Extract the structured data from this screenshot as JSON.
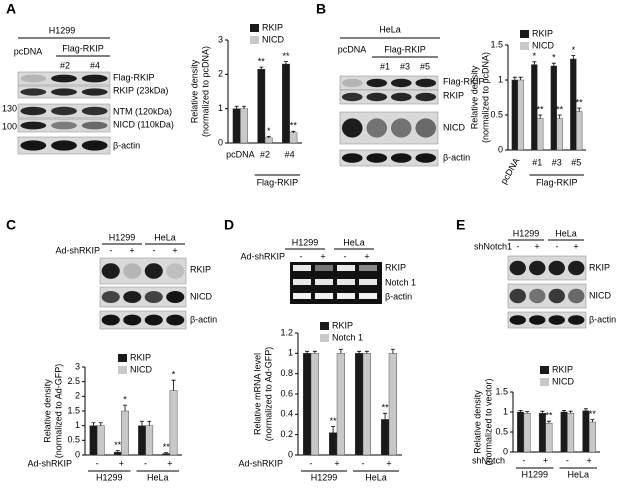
{
  "blots": {
    "A": {
      "letter": "A",
      "cell": "H1299",
      "lanes": [
        "pcDNA",
        "Flag-RKIP",
        "#2",
        "#4"
      ],
      "bands": [
        "Flag-RKIP",
        "RKIP (23kDa)",
        "NTM (120kDa)",
        "NICD (110kDa)",
        "β-actin"
      ],
      "markers": [
        130,
        100
      ]
    },
    "B": {
      "letter": "B",
      "cell": "HeLa",
      "lanes": [
        "pcDNA",
        "Flag-RKIP",
        "#1",
        "#3",
        "#5"
      ],
      "bands": [
        "Flag-RKIP",
        "RKIP",
        "NICD",
        "β-actin"
      ]
    },
    "C": {
      "letter": "C",
      "cells": [
        "H1299",
        "HeLa"
      ],
      "treatment": "Ad-shRKIP",
      "signs": [
        "-",
        "+",
        "-",
        "+"
      ],
      "bands": [
        "RKIP",
        "NICD",
        "β-actin"
      ]
    },
    "D": {
      "letter": "D",
      "cells": [
        "H1299",
        "HeLa"
      ],
      "treatment": "Ad-shRKIP",
      "signs": [
        "-",
        "+",
        "-",
        "+"
      ],
      "bands": [
        "RKIP",
        "Notch 1",
        "β-actin"
      ]
    },
    "E": {
      "letter": "E",
      "cells": [
        "H1299",
        "HeLa"
      ],
      "treatment": "shNotch1",
      "signs": [
        "-",
        "+",
        "-",
        "+"
      ],
      "bands": [
        "RKIP",
        "NICD",
        "β-actin"
      ]
    }
  },
  "chart_data": [
    {
      "type": "bar",
      "ylabel": [
        "Relative density",
        "(normalized to pcDNA)"
      ],
      "categories": [
        "pcDNA",
        "#2",
        "#4"
      ],
      "group_label": "Flag-RKIP",
      "series": [
        {
          "name": "RKIP",
          "color": "#1a1a1a",
          "values": [
            1,
            2.15,
            2.3
          ],
          "errors": [
            0.07,
            0.06,
            0.07
          ],
          "marks": [
            null,
            "**",
            "**"
          ]
        },
        {
          "name": "NICD",
          "color": "#c8c8c8",
          "values": [
            1,
            0.15,
            0.3
          ],
          "errors": [
            0.07,
            0.04,
            0.04
          ],
          "marks": [
            null,
            "*",
            "**"
          ]
        }
      ],
      "ylim": [
        0,
        3
      ],
      "yticks": [
        0,
        1,
        2,
        3
      ]
    },
    {
      "type": "bar",
      "ylabel": [
        "Relative density",
        "(normalized to pcDNA)"
      ],
      "categories": [
        "pcDNA",
        "#1",
        "#3",
        "#5"
      ],
      "group_label": "Flag-RKIP",
      "series": [
        {
          "name": "RKIP",
          "color": "#1a1a1a",
          "values": [
            1,
            1.22,
            1.2,
            1.3
          ],
          "errors": [
            0.04,
            0.04,
            0.04,
            0.05
          ],
          "marks": [
            null,
            "*",
            "*",
            "*"
          ]
        },
        {
          "name": "NICD",
          "color": "#c8c8c8",
          "values": [
            1,
            0.45,
            0.45,
            0.55
          ],
          "errors": [
            0.04,
            0.05,
            0.05,
            0.05
          ],
          "marks": [
            null,
            "**",
            "**",
            "**"
          ]
        }
      ],
      "ylim": [
        0,
        1.5
      ],
      "yticks": [
        0,
        0.5,
        1,
        1.5
      ]
    },
    {
      "type": "bar",
      "ylabel": [
        "Relative density",
        "(normalized to Ad-GFP)"
      ],
      "categories": [
        "-",
        "+",
        "-",
        "+"
      ],
      "groups": [
        "H1299",
        "HeLa"
      ],
      "x_label": "Ad-shRKIP",
      "series": [
        {
          "name": "RKIP",
          "color": "#1a1a1a",
          "values": [
            1,
            0.1,
            1,
            0.05
          ],
          "errors": [
            0.1,
            0.05,
            0.15,
            0.03
          ],
          "marks": [
            null,
            "**",
            null,
            "**"
          ]
        },
        {
          "name": "NICD",
          "color": "#c8c8c8",
          "values": [
            1,
            1.5,
            1,
            2.2
          ],
          "errors": [
            0.1,
            0.2,
            0.15,
            0.35
          ],
          "marks": [
            null,
            "*",
            null,
            "*"
          ]
        }
      ],
      "ylim": [
        0,
        3
      ],
      "yticks": [
        0,
        0.5,
        1,
        1.5,
        2,
        2.5,
        3
      ]
    },
    {
      "type": "bar",
      "ylabel": [
        "Relative mRNA level",
        "(normalized to Ad-GFP)"
      ],
      "categories": [
        "-",
        "+",
        "-",
        "+"
      ],
      "groups": [
        "H1299",
        "HeLa"
      ],
      "x_label": "Ad-shRKIP",
      "series": [
        {
          "name": "RKIP",
          "color": "#1a1a1a",
          "values": [
            1,
            0.22,
            1,
            0.35
          ],
          "errors": [
            0.02,
            0.06,
            0.02,
            0.06
          ],
          "marks": [
            null,
            "**",
            null,
            "**"
          ]
        },
        {
          "name": "Notch 1",
          "color": "#c8c8c8",
          "values": [
            1,
            1.0,
            1,
            1.0
          ],
          "errors": [
            0.02,
            0.04,
            0.02,
            0.04
          ],
          "marks": [
            null,
            null,
            null,
            null
          ]
        }
      ],
      "ylim": [
        0,
        1.2
      ],
      "yticks": [
        0,
        0.2,
        0.4,
        0.6,
        0.8,
        1,
        1.2
      ]
    },
    {
      "type": "bar",
      "ylabel": [
        "Relative density",
        "(normalized to vector)"
      ],
      "categories": [
        "-",
        "+",
        "-",
        "+"
      ],
      "groups": [
        "H1299",
        "HeLa"
      ],
      "x_label": "shNotch",
      "series": [
        {
          "name": "RKIP",
          "color": "#1a1a1a",
          "values": [
            1,
            0.97,
            1,
            1.03
          ],
          "errors": [
            0.04,
            0.05,
            0.04,
            0.05
          ],
          "marks": [
            null,
            null,
            null,
            null
          ]
        },
        {
          "name": "NICD",
          "color": "#c8c8c8",
          "values": [
            0.97,
            0.72,
            0.97,
            0.75
          ],
          "errors": [
            0.04,
            0.05,
            0.05,
            0.06
          ],
          "marks": [
            null,
            "**",
            null,
            "**"
          ]
        }
      ],
      "ylim": [
        0,
        1.5
      ],
      "yticks": [
        0,
        0.5,
        1,
        1.5
      ]
    }
  ]
}
